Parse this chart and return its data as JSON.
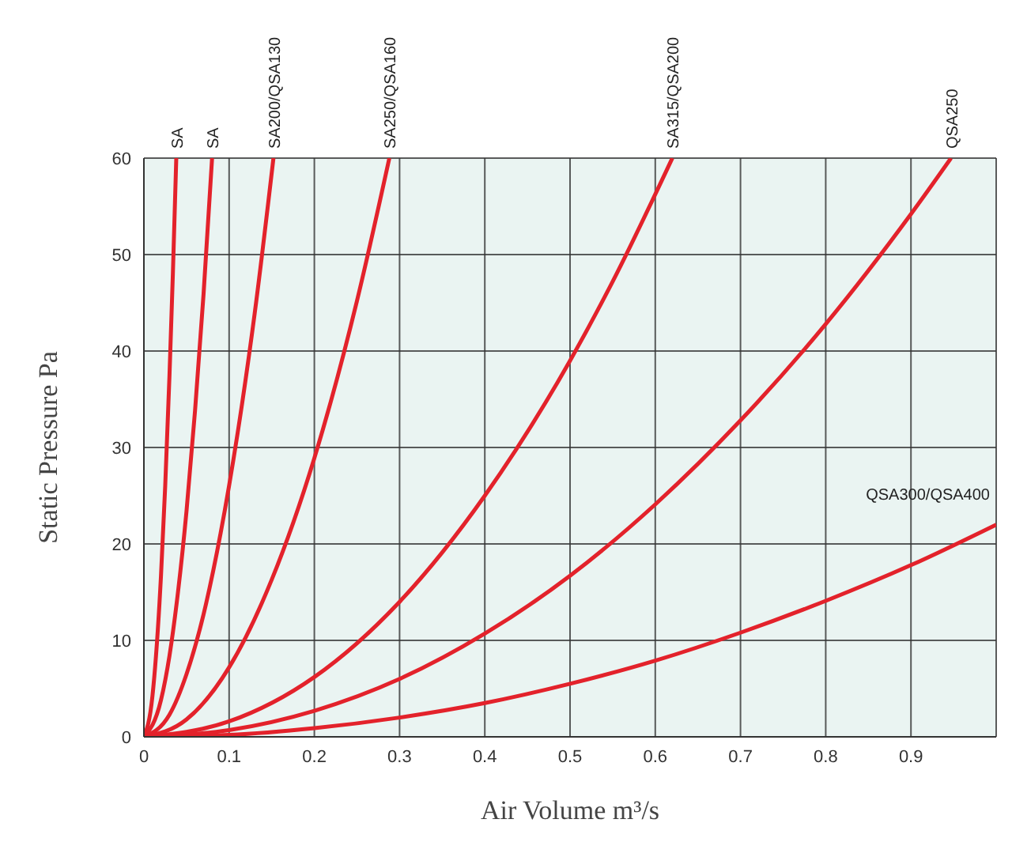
{
  "chart_data": {
    "type": "line",
    "xlabel": "Air Volume m³/s",
    "ylabel": "Static Pressure Pa",
    "xlim": [
      0,
      1
    ],
    "ylim": [
      0,
      60
    ],
    "xticks": [
      0,
      0.1,
      0.2,
      0.3,
      0.4,
      0.5,
      0.6,
      0.7,
      0.8,
      0.9
    ],
    "yticks": [
      0,
      10,
      20,
      30,
      40,
      50,
      60
    ],
    "grid": true,
    "legend": false,
    "marker": "none",
    "line_style": "solid",
    "series": [
      {
        "name": "SA",
        "color": "#e3222b",
        "x": [
          0,
          0.01,
          0.02,
          0.025,
          0.03,
          0.034,
          0.038
        ],
        "values": [
          0,
          4.2,
          16.6,
          26,
          37.4,
          48,
          60
        ]
      },
      {
        "name": "SA",
        "color": "#e3222b",
        "x": [
          0,
          0.02,
          0.03,
          0.04,
          0.05,
          0.06,
          0.07,
          0.08
        ],
        "values": [
          0,
          3.8,
          8.4,
          15,
          23.4,
          33.8,
          45.9,
          60
        ]
      },
      {
        "name": "SA200/QSA130",
        "color": "#e3222b",
        "x": [
          0,
          0.03,
          0.05,
          0.07,
          0.09,
          0.11,
          0.13,
          0.152
        ],
        "values": [
          0,
          2.3,
          6.5,
          12.7,
          21.1,
          31.5,
          43.9,
          60
        ]
      },
      {
        "name": "SA250/QSA160",
        "color": "#e3222b",
        "x": [
          0,
          0.05,
          0.1,
          0.15,
          0.2,
          0.25,
          0.288
        ],
        "values": [
          0,
          1.8,
          7.2,
          16.3,
          28.9,
          45.2,
          60
        ]
      },
      {
        "name": "SA315/QSA200",
        "color": "#e3222b",
        "x": [
          0,
          0.1,
          0.2,
          0.3,
          0.4,
          0.5,
          0.55,
          0.62
        ],
        "values": [
          0,
          1.6,
          6.2,
          14,
          25,
          39,
          47.2,
          60
        ]
      },
      {
        "name": "QSA250",
        "color": "#e3222b",
        "x": [
          0,
          0.1,
          0.2,
          0.3,
          0.4,
          0.5,
          0.6,
          0.7,
          0.8,
          0.9,
          0.947
        ],
        "values": [
          0,
          0.7,
          2.7,
          6,
          10.7,
          16.7,
          24.1,
          32.8,
          42.8,
          54.2,
          60
        ]
      },
      {
        "name": "QSA300/QSA400",
        "color": "#e3222b",
        "x": [
          0,
          0.1,
          0.2,
          0.3,
          0.4,
          0.5,
          0.6,
          0.7,
          0.8,
          0.9,
          1
        ],
        "values": [
          0,
          0.2,
          0.9,
          2,
          3.5,
          5.5,
          7.9,
          10.8,
          14.1,
          17.8,
          22
        ]
      }
    ]
  }
}
